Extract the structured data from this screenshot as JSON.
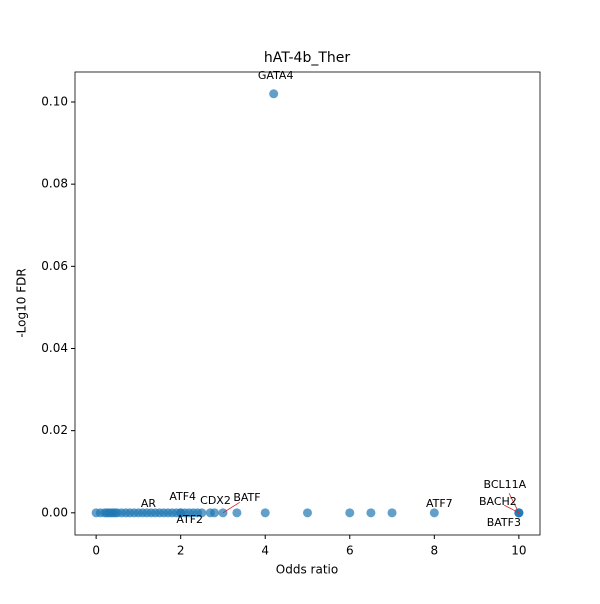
{
  "chart_data": {
    "type": "scatter",
    "title": "hAT-4b_Ther",
    "x_label": "Odds ratio",
    "y_label": "-Log10 FDR",
    "xlim": [
      -0.5,
      10.5
    ],
    "ylim": [
      -0.0054,
      0.1073
    ],
    "xticks": [
      0,
      2,
      4,
      6,
      8,
      10
    ],
    "yticks": [
      {
        "value": 0,
        "label": "0.00"
      },
      {
        "value": 0.02,
        "label": "0.02"
      },
      {
        "value": 0.04,
        "label": "0.04"
      },
      {
        "value": 0.06,
        "label": "0.06"
      },
      {
        "value": 0.08,
        "label": "0.08"
      },
      {
        "value": 0.1,
        "label": "0.10"
      }
    ],
    "color": "#1f77b4",
    "x": [
      0,
      0.1,
      0.2,
      0.25,
      0.3,
      0.35,
      0.4,
      0.45,
      0.5,
      0.6,
      0.7,
      0.8,
      0.9,
      1.0,
      1.1,
      1.2,
      1.3,
      1.4,
      1.5,
      1.6,
      1.7,
      1.8,
      1.9,
      2.0,
      2.0,
      2.1,
      2.2,
      2.3,
      2.4,
      2.5,
      2.7,
      2.8,
      3.0,
      3.33,
      4.0,
      4.2,
      5.0,
      6.0,
      6.5,
      7.0,
      8.0,
      10,
      10,
      10
    ],
    "values": [
      0,
      0,
      0,
      0,
      0,
      0,
      0,
      0,
      0,
      0,
      0,
      0,
      0,
      0,
      0,
      0,
      0,
      0,
      0,
      0,
      0,
      0,
      0,
      0,
      0,
      0,
      0,
      0,
      0,
      0,
      0,
      0,
      0,
      0,
      0,
      0.102,
      0,
      0,
      0,
      0,
      0,
      0,
      0,
      0
    ],
    "point_labels": [
      null,
      null,
      null,
      null,
      null,
      null,
      null,
      null,
      null,
      null,
      null,
      null,
      null,
      "AR",
      null,
      null,
      null,
      null,
      null,
      null,
      null,
      null,
      null,
      "ATF4",
      "ATF2",
      null,
      null,
      null,
      null,
      null,
      null,
      "CDX2",
      "BATF",
      null,
      null,
      "GATA4",
      null,
      null,
      null,
      null,
      "ATF7",
      "BCL11A",
      "BACH2",
      "BATF3"
    ]
  }
}
